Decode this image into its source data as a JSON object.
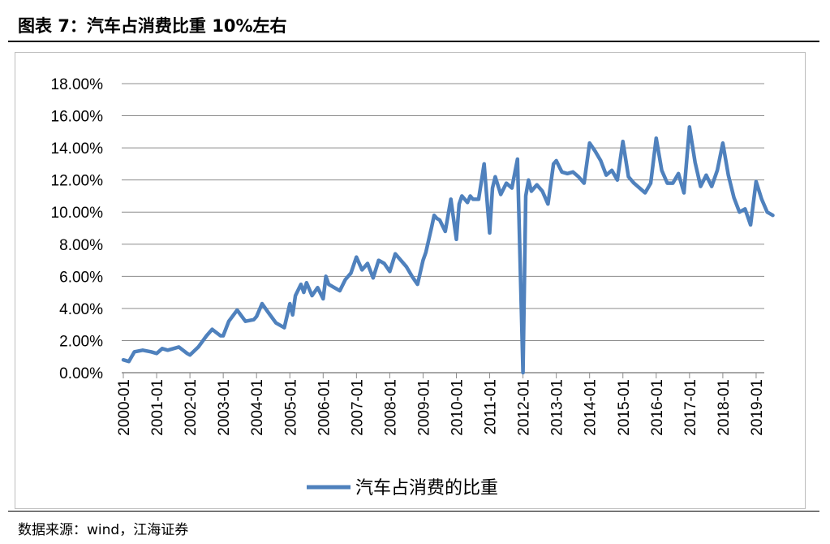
{
  "header": {
    "title": "图表 7：汽车占消费比重 10%左右"
  },
  "footer": {
    "source": "数据来源：wind，江海证券"
  },
  "chart_data": {
    "type": "line",
    "title": "图表 7：汽车占消费比重 10%左右",
    "xlabel": "",
    "ylabel": "",
    "ylim": [
      0,
      18
    ],
    "y_tick_values": [
      0,
      2,
      4,
      6,
      8,
      10,
      12,
      14,
      16,
      18
    ],
    "y_tick_labels": [
      "0.00%",
      "2.00%",
      "4.00%",
      "6.00%",
      "8.00%",
      "10.00%",
      "12.00%",
      "14.00%",
      "16.00%",
      "18.00%"
    ],
    "x_tick_labels": [
      "2000-01",
      "2001-01",
      "2002-01",
      "2003-01",
      "2004-01",
      "2005-01",
      "2006-01",
      "2007-01",
      "2008-01",
      "2009-01",
      "2010-01",
      "2011-01",
      "2012-01",
      "2013-01",
      "2014-01",
      "2015-01",
      "2016-01",
      "2017-01",
      "2018-01",
      "2019-01"
    ],
    "grid": true,
    "legend_position": "bottom",
    "series_color": "#4f81bd",
    "series": [
      {
        "name": "汽车占消费的比重",
        "x": [
          "2000-01",
          "2000-03",
          "2000-05",
          "2000-08",
          "2000-11",
          "2001-01",
          "2001-03",
          "2001-05",
          "2001-09",
          "2001-12",
          "2002-01",
          "2002-04",
          "2002-07",
          "2002-09",
          "2002-12",
          "2003-01",
          "2003-03",
          "2003-06",
          "2003-09",
          "2003-12",
          "2004-01",
          "2004-03",
          "2004-05",
          "2004-08",
          "2004-11",
          "2005-01",
          "2005-02",
          "2005-03",
          "2005-05",
          "2005-06",
          "2005-07",
          "2005-09",
          "2005-11",
          "2006-01",
          "2006-02",
          "2006-03",
          "2006-05",
          "2006-07",
          "2006-09",
          "2006-11",
          "2007-01",
          "2007-03",
          "2007-05",
          "2007-07",
          "2007-09",
          "2007-11",
          "2008-01",
          "2008-03",
          "2008-05",
          "2008-07",
          "2008-09",
          "2008-11",
          "2009-01",
          "2009-02",
          "2009-04",
          "2009-05",
          "2009-06",
          "2009-07",
          "2009-09",
          "2009-11",
          "2010-01",
          "2010-02",
          "2010-03",
          "2010-05",
          "2010-06",
          "2010-07",
          "2010-09",
          "2010-11",
          "2011-01",
          "2011-02",
          "2011-03",
          "2011-05",
          "2011-07",
          "2011-09",
          "2011-11",
          "2012-01",
          "2012-02",
          "2012-03",
          "2012-04",
          "2012-06",
          "2012-08",
          "2012-10",
          "2012-12",
          "2013-01",
          "2013-03",
          "2013-05",
          "2013-07",
          "2013-09",
          "2013-11",
          "2014-01",
          "2014-03",
          "2014-05",
          "2014-07",
          "2014-09",
          "2014-11",
          "2015-01",
          "2015-03",
          "2015-05",
          "2015-07",
          "2015-09",
          "2015-11",
          "2016-01",
          "2016-03",
          "2016-05",
          "2016-07",
          "2016-09",
          "2016-11",
          "2017-01",
          "2017-03",
          "2017-05",
          "2017-07",
          "2017-09",
          "2017-11",
          "2018-01",
          "2018-03",
          "2018-05",
          "2018-07",
          "2018-09",
          "2018-11",
          "2019-01",
          "2019-03",
          "2019-05",
          "2019-07"
        ],
        "values": [
          0.8,
          0.7,
          1.3,
          1.4,
          1.3,
          1.2,
          1.5,
          1.4,
          1.6,
          1.2,
          1.1,
          1.6,
          2.3,
          2.7,
          2.3,
          2.3,
          3.2,
          3.9,
          3.2,
          3.3,
          3.5,
          4.3,
          3.8,
          3.1,
          2.8,
          4.3,
          3.6,
          4.8,
          5.5,
          5.0,
          5.6,
          4.8,
          5.3,
          4.6,
          6.0,
          5.5,
          5.3,
          5.1,
          5.8,
          6.2,
          7.2,
          6.4,
          6.8,
          5.9,
          7.0,
          6.8,
          6.3,
          7.4,
          7.0,
          6.6,
          6.0,
          5.5,
          7.0,
          7.5,
          9.0,
          9.8,
          9.6,
          9.5,
          8.8,
          10.8,
          8.3,
          10.5,
          11.0,
          10.6,
          11.0,
          10.8,
          10.8,
          13.0,
          8.7,
          11.5,
          12.2,
          11.1,
          11.8,
          11.5,
          13.3,
          0.0,
          11.0,
          12.0,
          11.3,
          11.7,
          11.3,
          10.5,
          13.0,
          13.2,
          12.5,
          12.4,
          12.5,
          12.2,
          11.8,
          14.3,
          13.8,
          13.2,
          12.3,
          12.6,
          12.0,
          14.4,
          12.2,
          11.8,
          11.5,
          11.2,
          11.8,
          14.6,
          12.6,
          11.8,
          11.8,
          12.4,
          11.2,
          15.3,
          13.1,
          11.6,
          12.3,
          11.6,
          12.6,
          14.3,
          12.3,
          10.9,
          10.0,
          10.2,
          9.2,
          11.9,
          10.8,
          10.0,
          9.8
        ]
      }
    ]
  }
}
